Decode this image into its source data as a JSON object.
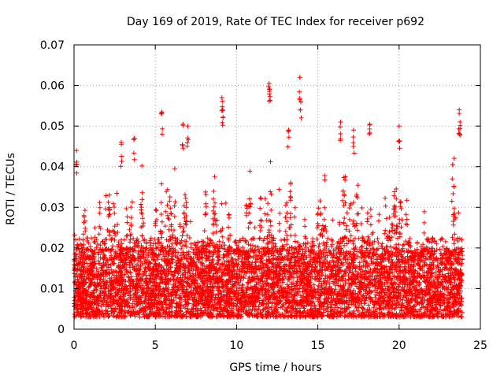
{
  "chart_data": {
    "type": "scatter",
    "title": "Day 169 of 2019, Rate Of TEC Index for receiver p692",
    "xlabel": "GPS time / hours",
    "ylabel": "ROTI / TECUs",
    "xlim": [
      0,
      25
    ],
    "ylim": [
      0,
      0.07
    ],
    "x_ticks": [
      0,
      5,
      10,
      15,
      20,
      25
    ],
    "x_tick_labels": [
      "0",
      "5",
      "10",
      "15",
      "20",
      "25"
    ],
    "y_ticks": [
      0,
      0.01,
      0.02,
      0.03,
      0.04,
      0.05,
      0.06,
      0.07
    ],
    "y_tick_labels": [
      "0",
      "0.01",
      "0.02",
      "0.03",
      "0.04",
      "0.05",
      "0.06",
      "0.07"
    ],
    "grid": true,
    "marker": "plus",
    "marker_color": "#ff0000",
    "series": [
      {
        "name": "ROTI",
        "x_range": [
          0,
          23.9
        ],
        "typical_range": [
          0.003,
          0.03
        ],
        "peaks": [
          {
            "x": 0.15,
            "y": 0.044
          },
          {
            "x": 2.9,
            "y": 0.046
          },
          {
            "x": 3.7,
            "y": 0.047
          },
          {
            "x": 5.4,
            "y": 0.0535
          },
          {
            "x": 6.7,
            "y": 0.0505
          },
          {
            "x": 7.0,
            "y": 0.05
          },
          {
            "x": 9.1,
            "y": 0.057
          },
          {
            "x": 9.15,
            "y": 0.054
          },
          {
            "x": 12.0,
            "y": 0.0605
          },
          {
            "x": 12.05,
            "y": 0.059
          },
          {
            "x": 13.2,
            "y": 0.049
          },
          {
            "x": 13.9,
            "y": 0.062
          },
          {
            "x": 13.95,
            "y": 0.056
          },
          {
            "x": 16.4,
            "y": 0.051
          },
          {
            "x": 17.2,
            "y": 0.049
          },
          {
            "x": 18.2,
            "y": 0.0505
          },
          {
            "x": 20.0,
            "y": 0.05
          },
          {
            "x": 23.7,
            "y": 0.054
          },
          {
            "x": 23.75,
            "y": 0.051
          }
        ]
      }
    ]
  }
}
